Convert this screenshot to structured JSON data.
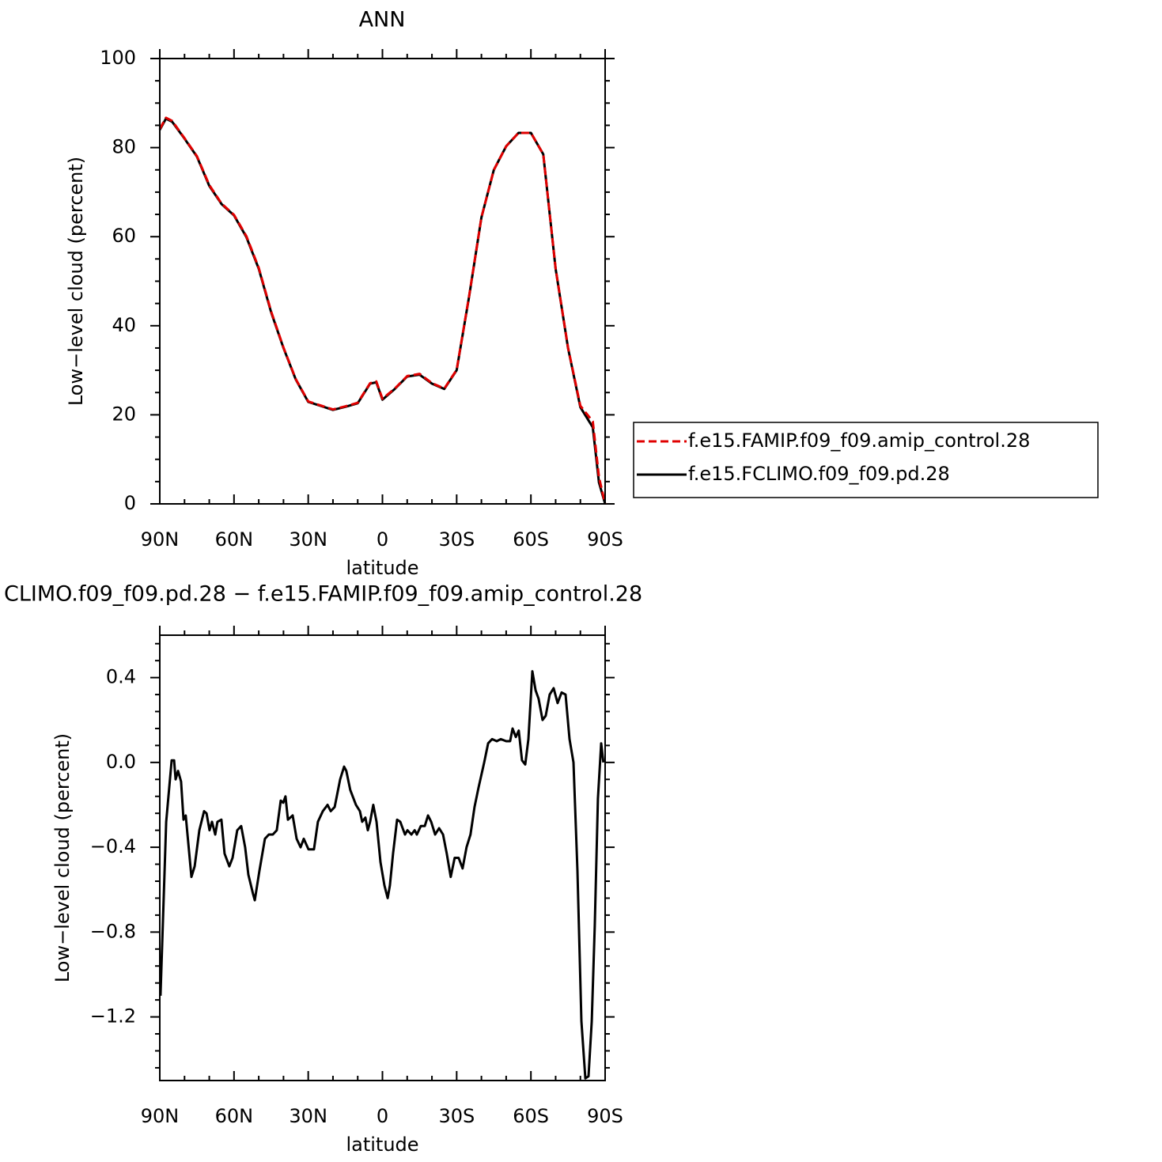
{
  "chart_data": [
    {
      "type": "line",
      "title": "ANN",
      "xlabel": "latitude",
      "ylabel": "Low−level cloud (percent)",
      "xlim": [
        90,
        -90
      ],
      "xticks": [
        {
          "value": 90,
          "label": "90N"
        },
        {
          "value": 60,
          "label": "60N"
        },
        {
          "value": 30,
          "label": "30N"
        },
        0,
        {
          "value": -30,
          "label": "30S"
        },
        {
          "value": -60,
          "label": "60S"
        },
        {
          "value": -90,
          "label": "90S"
        }
      ],
      "ylim": [
        0,
        100
      ],
      "yticks": [
        0,
        20,
        40,
        60,
        80,
        100
      ],
      "legend": "right",
      "x": [
        90,
        87.5,
        85,
        80,
        75,
        70,
        65,
        60,
        55,
        50,
        45,
        40,
        35,
        30,
        25,
        20,
        15,
        10,
        5,
        2.5,
        0,
        -5,
        -10,
        -15,
        -20,
        -25,
        -30,
        -35,
        -40,
        -45,
        -50,
        -55,
        -60,
        -65,
        -70,
        -75,
        -80,
        -85,
        -87.5,
        -90
      ],
      "series": [
        {
          "name": "f.e15.FAMIP.f09_f09.amip_control.28",
          "color": "#e00000",
          "linestyle": "dashed",
          "values": [
            84.2,
            86.7,
            86,
            82.1,
            78.1,
            71.6,
            67.4,
            64.9,
            60.1,
            53,
            43.2,
            35.1,
            28,
            23,
            22.1,
            21.2,
            21.9,
            22.7,
            27.1,
            27.5,
            23.6,
            25.9,
            28.7,
            29.2,
            27.1,
            25.9,
            30.1,
            46.6,
            64.3,
            75,
            80.3,
            83.3,
            83.3,
            78.5,
            52.9,
            35.1,
            22,
            18.5,
            6,
            0
          ]
        },
        {
          "name": "f.e15.FCLIMO.f09_f09.pd.28",
          "color": "#000000",
          "linestyle": "solid",
          "values": [
            84,
            86.5,
            85.8,
            82,
            78,
            71.4,
            67.3,
            64.8,
            59.9,
            52.8,
            43,
            35,
            27.9,
            22.9,
            22,
            21.1,
            21.8,
            22.6,
            27,
            27.3,
            23.4,
            25.8,
            28.6,
            29,
            27,
            25.8,
            30,
            46.5,
            64.3,
            75,
            80.3,
            83.3,
            83.3,
            78.5,
            52.8,
            35,
            21.7,
            17.2,
            4.8,
            0
          ]
        }
      ]
    },
    {
      "type": "line",
      "title": "CLIMO.f09_f09.pd.28 − f.e15.FAMIP.f09_f09.amip_control.28",
      "xlabel": "latitude",
      "ylabel": "Low−level cloud (percent)",
      "xlim": [
        90,
        -90
      ],
      "xticks": [
        {
          "value": 90,
          "label": "90N"
        },
        {
          "value": 60,
          "label": "60N"
        },
        {
          "value": 30,
          "label": "30N"
        },
        0,
        {
          "value": -30,
          "label": "30S"
        },
        {
          "value": -60,
          "label": "60S"
        },
        {
          "value": -90,
          "label": "90S"
        }
      ],
      "ylim": [
        -1.5,
        0.6
      ],
      "yticks": [
        {
          "value": -1.2,
          "label": "−1.2"
        },
        {
          "value": -0.8,
          "label": "−0.8"
        },
        {
          "value": -0.4,
          "label": "−0.4"
        },
        {
          "value": 0,
          "label": "0.0"
        },
        {
          "value": 0.4,
          "label": "0.4"
        }
      ],
      "color": "#000000",
      "x": [
        89.7,
        87.4,
        85.2,
        84.2,
        83.6,
        82.6,
        81.4,
        80.4,
        79.5,
        77.2,
        75.9,
        74,
        72.1,
        71.1,
        69.9,
        68.9,
        67.6,
        66.7,
        65.1,
        63.8,
        61.9,
        60.6,
        58.7,
        57.1,
        55.5,
        54.2,
        52.3,
        51.6,
        49.7,
        47.5,
        45.9,
        44.3,
        42.7,
        41.1,
        40.1,
        39.2,
        38.2,
        36.3,
        34.7,
        33.1,
        31.8,
        29.9,
        27.7,
        26.1,
        24.1,
        22.2,
        20.9,
        19.3,
        17.1,
        15.5,
        14.6,
        13,
        10.7,
        9.1,
        8.2,
        6.9,
        5.9,
        5,
        3.7,
        2.4,
        0.8,
        -0.8,
        -2.1,
        -3,
        -4.3,
        -5.9,
        -7.2,
        -9.1,
        -10.1,
        -11.7,
        -13,
        -13.9,
        -15.5,
        -17.1,
        -18.4,
        -19.7,
        -21.3,
        -22.9,
        -24.5,
        -26,
        -27.6,
        -29.2,
        -30.8,
        -32.4,
        -34,
        -35.6,
        -37.2,
        -38.8,
        -41.1,
        -42.7,
        -44.3,
        -46.2,
        -47.8,
        -50,
        -51.6,
        -52.6,
        -53.9,
        -55.1,
        -56.4,
        -57.7,
        -59,
        -60.6,
        -61.9,
        -63.1,
        -64.7,
        -66,
        -67.6,
        -69.2,
        -70.8,
        -72.4,
        -74,
        -75.6,
        -77.2,
        -78.8,
        -80.4,
        -82,
        -83.3,
        -84.6,
        -85.8,
        -87.1,
        -88.4,
        -89.3
      ],
      "values": [
        -1.1,
        -0.28,
        0.01,
        0.01,
        -0.08,
        -0.04,
        -0.09,
        -0.27,
        -0.25,
        -0.54,
        -0.49,
        -0.32,
        -0.23,
        -0.24,
        -0.32,
        -0.28,
        -0.34,
        -0.28,
        -0.27,
        -0.43,
        -0.49,
        -0.45,
        -0.32,
        -0.3,
        -0.4,
        -0.53,
        -0.62,
        -0.65,
        -0.51,
        -0.36,
        -0.34,
        -0.34,
        -0.32,
        -0.18,
        -0.19,
        -0.16,
        -0.27,
        -0.25,
        -0.36,
        -0.4,
        -0.36,
        -0.41,
        -0.41,
        -0.28,
        -0.23,
        -0.2,
        -0.23,
        -0.21,
        -0.08,
        -0.02,
        -0.04,
        -0.13,
        -0.2,
        -0.23,
        -0.28,
        -0.26,
        -0.32,
        -0.28,
        -0.2,
        -0.28,
        -0.47,
        -0.58,
        -0.64,
        -0.58,
        -0.43,
        -0.27,
        -0.28,
        -0.34,
        -0.32,
        -0.34,
        -0.32,
        -0.34,
        -0.3,
        -0.3,
        -0.25,
        -0.28,
        -0.34,
        -0.31,
        -0.34,
        -0.43,
        -0.54,
        -0.45,
        -0.45,
        -0.5,
        -0.4,
        -0.34,
        -0.21,
        -0.12,
        0,
        0.09,
        0.11,
        0.1,
        0.11,
        0.1,
        0.1,
        0.16,
        0.12,
        0.15,
        0.01,
        -0.01,
        0.11,
        0.43,
        0.34,
        0.3,
        0.2,
        0.22,
        0.32,
        0.35,
        0.28,
        0.33,
        0.32,
        0.11,
        0,
        -0.51,
        -1.22,
        -1.49,
        -1.48,
        -1.22,
        -0.77,
        -0.17,
        0.09,
        0
      ]
    }
  ]
}
